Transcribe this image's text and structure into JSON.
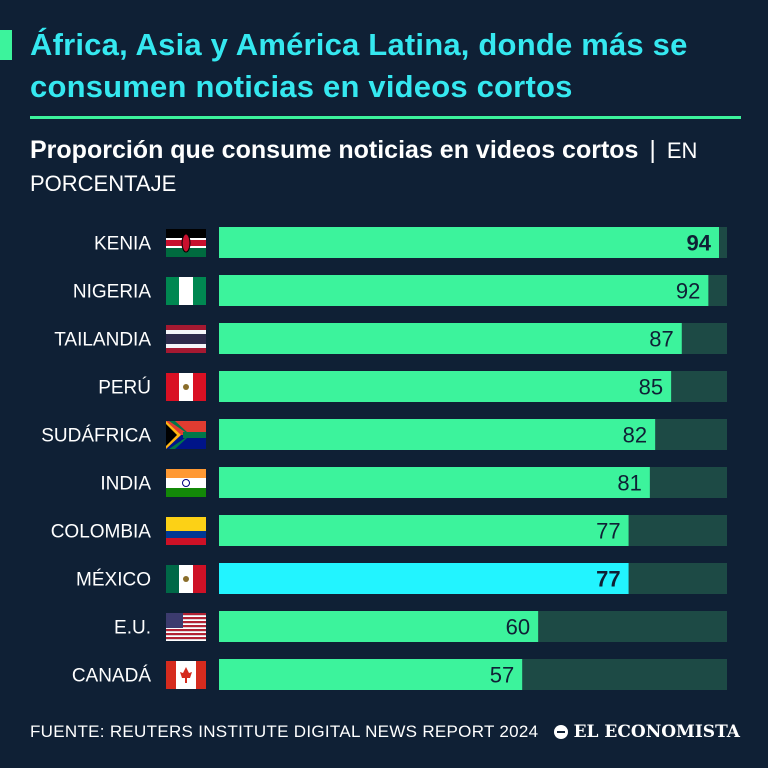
{
  "header": {
    "title": "África, Asia y América Latina, donde más se consumen noticias en videos cortos",
    "subtitle_bold": "Proporción que consume noticias en videos cortos",
    "subtitle_sep": "|",
    "subtitle_unit": "EN PORCENTAJE"
  },
  "footer": {
    "source": "FUENTE: REUTERS INSTITUTE DIGITAL NEWS REPORT 2024",
    "brand": "EL ECONOMISTA"
  },
  "colors": {
    "background": "#0f2035",
    "bar": "#3cf39c",
    "highlight_bar": "#22f4ff",
    "track": "#1d4a45",
    "title": "#35e8f0"
  },
  "chart_data": {
    "type": "bar",
    "orientation": "horizontal",
    "title": "Proporción que consume noticias en videos cortos",
    "unit": "EN PORCENTAJE",
    "categories": [
      "KENIA",
      "NIGERIA",
      "TAILANDIA",
      "PERÚ",
      "SUDÁFRICA",
      "INDIA",
      "COLOMBIA",
      "MÉXICO",
      "E.U.",
      "CANADÁ"
    ],
    "values": [
      94,
      92,
      87,
      85,
      82,
      81,
      77,
      77,
      60,
      57
    ],
    "flags": [
      "kenya-flag",
      "nigeria-flag",
      "thailand-flag",
      "peru-flag",
      "south-africa-flag",
      "india-flag",
      "colombia-flag",
      "mexico-flag",
      "usa-flag",
      "canada-flag"
    ],
    "highlighted": [
      "KENIA",
      "MÉXICO"
    ],
    "highlight_color_category": "MÉXICO",
    "xlim": [
      0,
      100
    ],
    "xlabel": "",
    "ylabel": "",
    "grid": false
  }
}
